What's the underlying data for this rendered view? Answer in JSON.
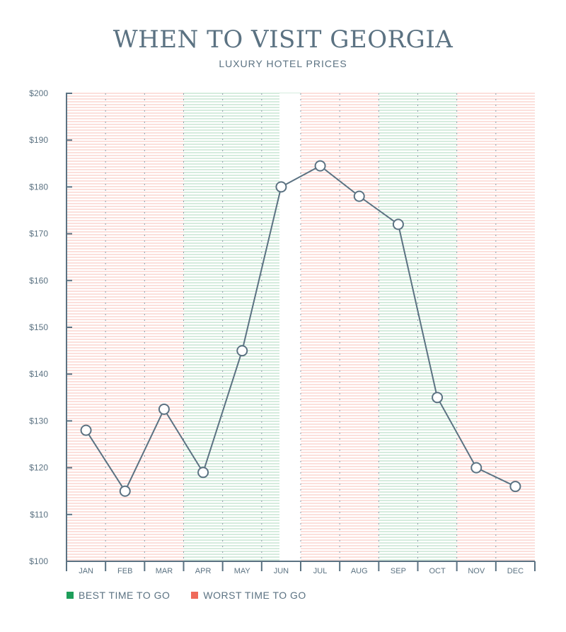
{
  "header": {
    "title": "WHEN TO VISIT GEORGIA",
    "subtitle": "LUXURY HOTEL PRICES"
  },
  "legend": {
    "best_label": "BEST TIME TO GO",
    "worst_label": "WORST TIME TO GO"
  },
  "colors": {
    "best": "#1e9e5a",
    "worst": "#ef6a5a",
    "best_band": "#9ed3b2",
    "worst_band": "#f7b8ae",
    "line": "#5b7282",
    "text": "#5b7282"
  },
  "chart_data": {
    "type": "line",
    "title": "WHEN TO VISIT GEORGIA",
    "subtitle": "LUXURY HOTEL PRICES",
    "xlabel": "",
    "ylabel": "",
    "categories": [
      "JAN",
      "FEB",
      "MAR",
      "APR",
      "MAY",
      "JUN",
      "JUL",
      "AUG",
      "SEP",
      "OCT",
      "NOV",
      "DEC"
    ],
    "series": [
      {
        "values": [
          128,
          115,
          132.5,
          119,
          145,
          180,
          184.5,
          178,
          172,
          135,
          120,
          116
        ]
      }
    ],
    "ylim": [
      100,
      200
    ],
    "yticks": [
      100,
      110,
      120,
      130,
      140,
      150,
      160,
      170,
      180,
      190,
      200
    ],
    "ytick_labels": [
      "$100",
      "$110",
      "$120",
      "$130",
      "$140",
      "$150",
      "$160",
      "$170",
      "$180",
      "$190",
      "$200"
    ],
    "band_periods": [
      "worst",
      "worst",
      "worst",
      "best",
      "best",
      "best",
      "worst",
      "worst",
      "best",
      "best",
      "worst",
      "worst"
    ],
    "grid": true,
    "legend_position": "bottom-left"
  }
}
